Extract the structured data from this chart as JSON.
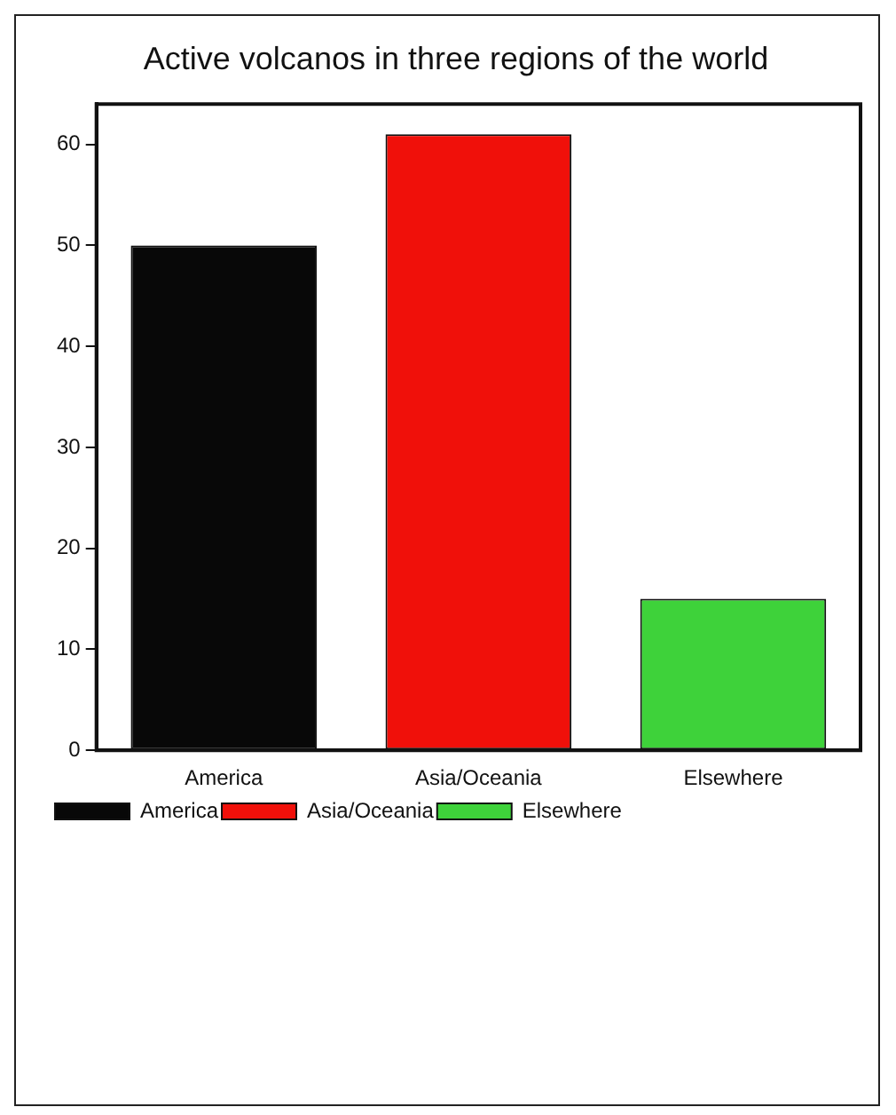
{
  "chart_data": {
    "type": "bar",
    "title": "Active volcanos in three regions of the world",
    "categories": [
      "America",
      "Asia/Oceania",
      "Elsewhere"
    ],
    "series": [
      {
        "name": "America",
        "color": "#080808",
        "values": [
          50,
          null,
          null
        ]
      },
      {
        "name": "Asia/Oceania",
        "color": "#f0100a",
        "values": [
          null,
          61,
          null
        ]
      },
      {
        "name": "Elsewhere",
        "color": "#3ed23a",
        "values": [
          null,
          null,
          15
        ]
      }
    ],
    "ylim": [
      0,
      64
    ],
    "yticks": [
      0,
      10,
      20,
      30,
      40,
      50,
      60
    ],
    "grid": false,
    "legend": "bottom left"
  }
}
